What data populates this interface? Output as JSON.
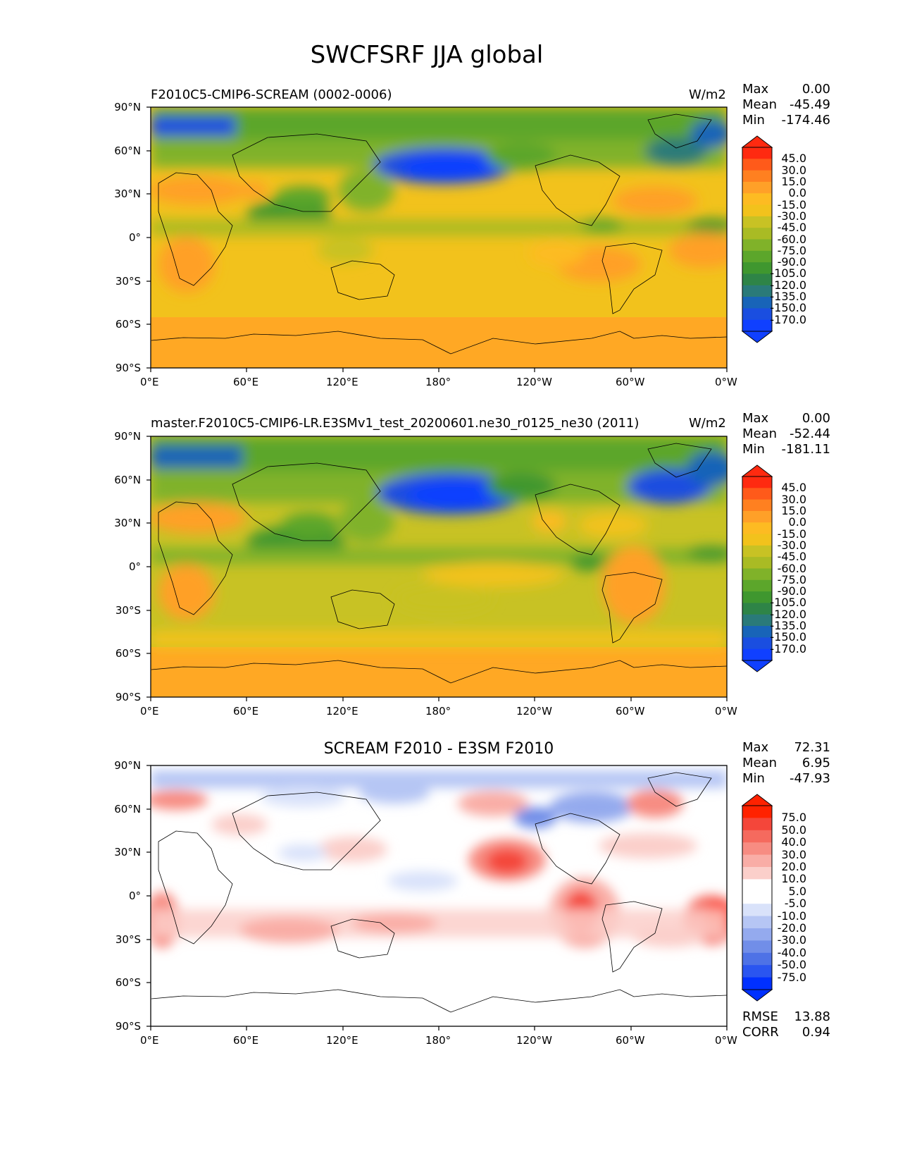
{
  "figure": {
    "title": "SWCFSRF JJA global"
  },
  "lat_ticks": [
    "90°N",
    "60°N",
    "30°N",
    "0°",
    "30°S",
    "60°S",
    "90°S"
  ],
  "lon_ticks": [
    "0°E",
    "60°E",
    "120°E",
    "180°",
    "120°W",
    "60°W",
    "0°W"
  ],
  "panels": [
    {
      "left_title": "F2010C5-CMIP6-SCREAM (0002-0006)",
      "center_title": "",
      "units": "W/m2",
      "stats": {
        "max_label": "Max",
        "max": "0.00",
        "mean_label": "Mean",
        "mean": "-45.49",
        "min_label": "Min",
        "min": "-174.46"
      },
      "colorbar": {
        "labels": [
          "45.0",
          "30.0",
          "15.0",
          "0.0",
          "-15.0",
          "-30.0",
          "-45.0",
          "-60.0",
          "-75.0",
          "-90.0",
          "-105.0",
          "-120.0",
          "-135.0",
          "-150.0",
          "-170.0"
        ],
        "colors": [
          "#ff2a10",
          "#ff5a1a",
          "#ff8020",
          "#ffa028",
          "#fdbb22",
          "#f2c21c",
          "#c8c224",
          "#a9bb24",
          "#80b229",
          "#5ca62b",
          "#3f972f",
          "#2e8447",
          "#2a7a79",
          "#1864b8",
          "#1a4ee0",
          "#1040ff"
        ]
      }
    },
    {
      "left_title": "master.F2010C5-CMIP6-LR.E3SMv1_test_20200601.ne30_r0125_ne30 (2011)",
      "center_title": "",
      "units": "W/m2",
      "stats": {
        "max_label": "Max",
        "max": "0.00",
        "mean_label": "Mean",
        "mean": "-52.44",
        "min_label": "Min",
        "min": "-181.11"
      },
      "colorbar": {
        "labels": [
          "45.0",
          "30.0",
          "15.0",
          "0.0",
          "-15.0",
          "-30.0",
          "-45.0",
          "-60.0",
          "-75.0",
          "-90.0",
          "-105.0",
          "-120.0",
          "-135.0",
          "-150.0",
          "-170.0"
        ],
        "colors": [
          "#ff2a10",
          "#ff5a1a",
          "#ff8020",
          "#ffa028",
          "#fdbb22",
          "#f2c21c",
          "#c8c224",
          "#a9bb24",
          "#80b229",
          "#5ca62b",
          "#3f972f",
          "#2e8447",
          "#2a7a79",
          "#1864b8",
          "#1a4ee0",
          "#1040ff"
        ]
      }
    },
    {
      "left_title": "",
      "center_title": "SCREAM F2010 - E3SM F2010",
      "units": "",
      "stats": {
        "max_label": "Max",
        "max": "72.31",
        "mean_label": "Mean",
        "mean": "6.95",
        "min_label": "Min",
        "min": "-47.93"
      },
      "extra_stats": {
        "rmse_label": "RMSE",
        "rmse": "13.88",
        "corr_label": "CORR",
        "corr": "0.94"
      },
      "colorbar": {
        "labels": [
          "75.0",
          "50.0",
          "40.0",
          "30.0",
          "20.0",
          "10.0",
          "5.0",
          "-5.0",
          "-10.0",
          "-20.0",
          "-30.0",
          "-40.0",
          "-50.0",
          "-75.0"
        ],
        "colors": [
          "#ff2200",
          "#f4463a",
          "#f56a5e",
          "#f78c82",
          "#f9ada6",
          "#fbcfca",
          "#ffffff",
          "#ffffff",
          "#d9e2fa",
          "#b6c6f4",
          "#94aaee",
          "#718ee8",
          "#4e72e6",
          "#2a55f0",
          "#0030ff"
        ]
      }
    }
  ]
}
